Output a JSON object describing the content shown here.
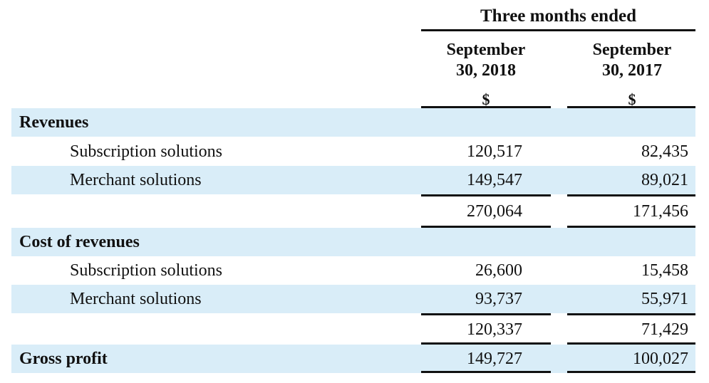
{
  "header": {
    "group_label": "Three months ended",
    "columns": [
      {
        "line1": "September",
        "line2": "30, 2018",
        "currency": "$"
      },
      {
        "line1": "September",
        "line2": "30, 2017",
        "currency": "$"
      }
    ]
  },
  "rows": [
    {
      "label": "Revenues",
      "values": [
        "",
        ""
      ]
    },
    {
      "label": "Subscription solutions",
      "values": [
        "120,517",
        "82,435"
      ]
    },
    {
      "label": "Merchant solutions",
      "values": [
        "149,547",
        "89,021"
      ]
    },
    {
      "label": "",
      "values": [
        "270,064",
        "171,456"
      ]
    },
    {
      "label": "Cost of revenues",
      "values": [
        "",
        ""
      ]
    },
    {
      "label": "Subscription solutions",
      "values": [
        "26,600",
        "15,458"
      ]
    },
    {
      "label": "Merchant solutions",
      "values": [
        "93,737",
        "55,971"
      ]
    },
    {
      "label": "",
      "values": [
        "120,337",
        "71,429"
      ]
    },
    {
      "label": "Gross profit",
      "values": [
        "149,727",
        "100,027"
      ]
    }
  ]
}
